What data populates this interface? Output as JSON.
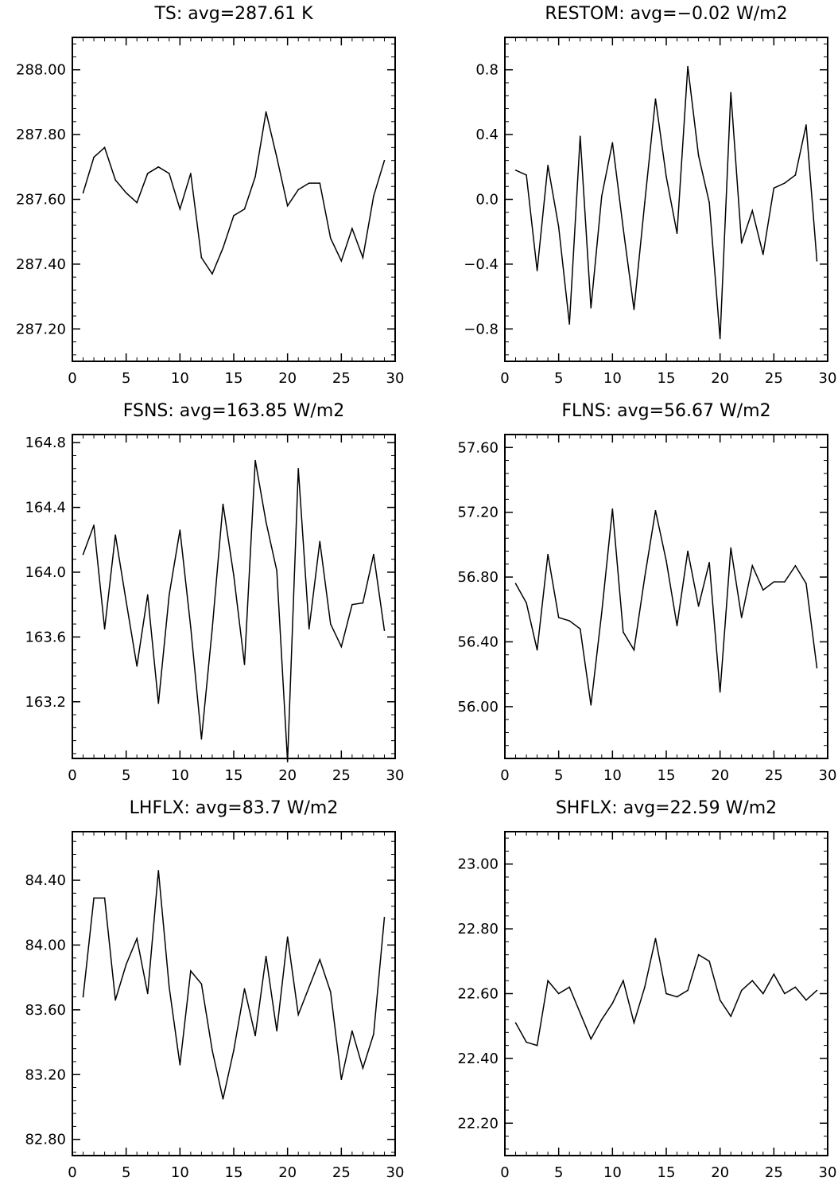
{
  "chart_data": [
    {
      "type": "line",
      "title": "TS: avg=287.61 K",
      "xlim": [
        0,
        30
      ],
      "ylim": [
        287.1,
        288.1
      ],
      "xticks": [
        0,
        5,
        10,
        15,
        20,
        25,
        30
      ],
      "xtick_labels": [
        "0",
        "5",
        "10",
        "15",
        "20",
        "25",
        "30"
      ],
      "yticks": [
        287.2,
        287.4,
        287.6,
        287.8,
        288.0
      ],
      "ytick_labels": [
        "287.20",
        "287.40",
        "287.60",
        "287.80",
        "288.00"
      ],
      "x": [
        1,
        2,
        3,
        4,
        5,
        6,
        7,
        8,
        9,
        10,
        11,
        12,
        13,
        14,
        15,
        16,
        17,
        18,
        19,
        20,
        21,
        22,
        23,
        24,
        25,
        26,
        27,
        28,
        29
      ],
      "y": [
        287.62,
        287.73,
        287.76,
        287.66,
        287.62,
        287.59,
        287.68,
        287.7,
        287.68,
        287.57,
        287.68,
        287.42,
        287.37,
        287.45,
        287.55,
        287.57,
        287.67,
        287.87,
        287.73,
        287.58,
        287.63,
        287.65,
        287.65,
        287.48,
        287.41,
        287.51,
        287.42,
        287.61,
        287.72
      ]
    },
    {
      "type": "line",
      "title": "RESTOM: avg=−0.02 W/m2",
      "xlim": [
        0,
        30
      ],
      "ylim": [
        -1.0,
        1.0
      ],
      "xticks": [
        0,
        5,
        10,
        15,
        20,
        25,
        30
      ],
      "xtick_labels": [
        "0",
        "5",
        "10",
        "15",
        "20",
        "25",
        "30"
      ],
      "yticks": [
        -0.8,
        -0.4,
        0.0,
        0.4,
        0.8
      ],
      "ytick_labels": [
        "−0.8",
        "−0.4",
        "0.0",
        "0.4",
        "0.8"
      ],
      "x": [
        1,
        2,
        3,
        4,
        5,
        6,
        7,
        8,
        9,
        10,
        11,
        12,
        13,
        14,
        15,
        16,
        17,
        18,
        19,
        20,
        21,
        22,
        23,
        24,
        25,
        26,
        27,
        28,
        29
      ],
      "y": [
        0.18,
        0.15,
        -0.44,
        0.21,
        -0.17,
        -0.77,
        0.39,
        -0.67,
        0.02,
        0.35,
        -0.18,
        -0.68,
        -0.02,
        0.62,
        0.14,
        -0.21,
        0.82,
        0.27,
        -0.02,
        -0.86,
        0.66,
        -0.27,
        -0.07,
        -0.34,
        0.07,
        0.1,
        0.15,
        0.46,
        -0.38
      ]
    },
    {
      "type": "line",
      "title": "FSNS: avg=163.85 W/m2",
      "xlim": [
        0,
        30
      ],
      "ylim": [
        162.85,
        164.85
      ],
      "xticks": [
        0,
        5,
        10,
        15,
        20,
        25,
        30
      ],
      "xtick_labels": [
        "0",
        "5",
        "10",
        "15",
        "20",
        "25",
        "30"
      ],
      "yticks": [
        163.2,
        163.6,
        164.0,
        164.4,
        164.8
      ],
      "ytick_labels": [
        "163.2",
        "163.6",
        "164.0",
        "164.4",
        "164.8"
      ],
      "x": [
        1,
        2,
        3,
        4,
        5,
        6,
        7,
        8,
        9,
        10,
        11,
        12,
        13,
        14,
        15,
        16,
        17,
        18,
        19,
        20,
        21,
        22,
        23,
        24,
        25,
        26,
        27,
        28,
        29
      ],
      "y": [
        164.11,
        164.29,
        163.65,
        164.23,
        163.82,
        163.42,
        163.86,
        163.19,
        163.86,
        164.26,
        163.66,
        162.97,
        163.65,
        164.42,
        163.98,
        163.43,
        164.69,
        164.31,
        164.01,
        162.83,
        164.64,
        163.65,
        164.19,
        163.68,
        163.54,
        163.8,
        163.81,
        164.11,
        163.64
      ]
    },
    {
      "type": "line",
      "title": "FLNS: avg=56.67 W/m2",
      "xlim": [
        0,
        30
      ],
      "ylim": [
        55.68,
        57.68
      ],
      "xticks": [
        0,
        5,
        10,
        15,
        20,
        25,
        30
      ],
      "xtick_labels": [
        "0",
        "5",
        "10",
        "15",
        "20",
        "25",
        "30"
      ],
      "yticks": [
        56.0,
        56.4,
        56.8,
        57.2,
        57.6
      ],
      "ytick_labels": [
        "56.00",
        "56.40",
        "56.80",
        "57.20",
        "57.60"
      ],
      "x": [
        1,
        2,
        3,
        4,
        5,
        6,
        7,
        8,
        9,
        10,
        11,
        12,
        13,
        14,
        15,
        16,
        17,
        18,
        19,
        20,
        21,
        22,
        23,
        24,
        25,
        26,
        27,
        28,
        29
      ],
      "y": [
        56.76,
        56.64,
        56.35,
        56.94,
        56.55,
        56.53,
        56.48,
        56.01,
        56.58,
        57.22,
        56.46,
        56.35,
        56.8,
        57.21,
        56.9,
        56.5,
        56.96,
        56.62,
        56.89,
        56.09,
        56.98,
        56.55,
        56.87,
        56.72,
        56.77,
        56.77,
        56.87,
        56.76,
        56.24
      ]
    },
    {
      "type": "line",
      "title": "LHFLX: avg=83.7 W/m2",
      "xlim": [
        0,
        30
      ],
      "ylim": [
        82.7,
        84.7
      ],
      "xticks": [
        0,
        5,
        10,
        15,
        20,
        25,
        30
      ],
      "xtick_labels": [
        "0",
        "5",
        "10",
        "15",
        "20",
        "25",
        "30"
      ],
      "yticks": [
        82.8,
        83.2,
        83.6,
        84.0,
        84.4
      ],
      "ytick_labels": [
        "82.80",
        "83.20",
        "83.60",
        "84.00",
        "84.40"
      ],
      "x": [
        1,
        2,
        3,
        4,
        5,
        6,
        7,
        8,
        9,
        10,
        11,
        12,
        13,
        14,
        15,
        16,
        17,
        18,
        19,
        20,
        21,
        22,
        23,
        24,
        25,
        26,
        27,
        28,
        29
      ],
      "y": [
        83.68,
        84.29,
        84.29,
        83.66,
        83.88,
        84.04,
        83.7,
        84.46,
        83.74,
        83.26,
        83.84,
        83.76,
        83.35,
        83.05,
        83.35,
        83.73,
        83.44,
        83.93,
        83.47,
        84.05,
        83.57,
        83.74,
        83.91,
        83.71,
        83.17,
        83.47,
        83.24,
        83.45,
        84.17
      ]
    },
    {
      "type": "line",
      "title": "SHFLX: avg=22.59 W/m2",
      "xlim": [
        0,
        30
      ],
      "ylim": [
        22.1,
        23.1
      ],
      "xticks": [
        0,
        5,
        10,
        15,
        20,
        25,
        30
      ],
      "xtick_labels": [
        "0",
        "5",
        "10",
        "15",
        "20",
        "25",
        "30"
      ],
      "yticks": [
        22.2,
        22.4,
        22.6,
        22.8,
        23.0
      ],
      "ytick_labels": [
        "22.20",
        "22.40",
        "22.60",
        "22.80",
        "23.00"
      ],
      "x": [
        1,
        2,
        3,
        4,
        5,
        6,
        7,
        8,
        9,
        10,
        11,
        12,
        13,
        14,
        15,
        16,
        17,
        18,
        19,
        20,
        21,
        22,
        23,
        24,
        25,
        26,
        27,
        28,
        29
      ],
      "y": [
        22.51,
        22.45,
        22.44,
        22.64,
        22.6,
        22.62,
        22.54,
        22.46,
        22.52,
        22.57,
        22.64,
        22.51,
        22.62,
        22.77,
        22.6,
        22.59,
        22.61,
        22.72,
        22.7,
        22.58,
        22.53,
        22.61,
        22.64,
        22.6,
        22.66,
        22.6,
        22.62,
        22.58,
        22.61
      ]
    }
  ]
}
